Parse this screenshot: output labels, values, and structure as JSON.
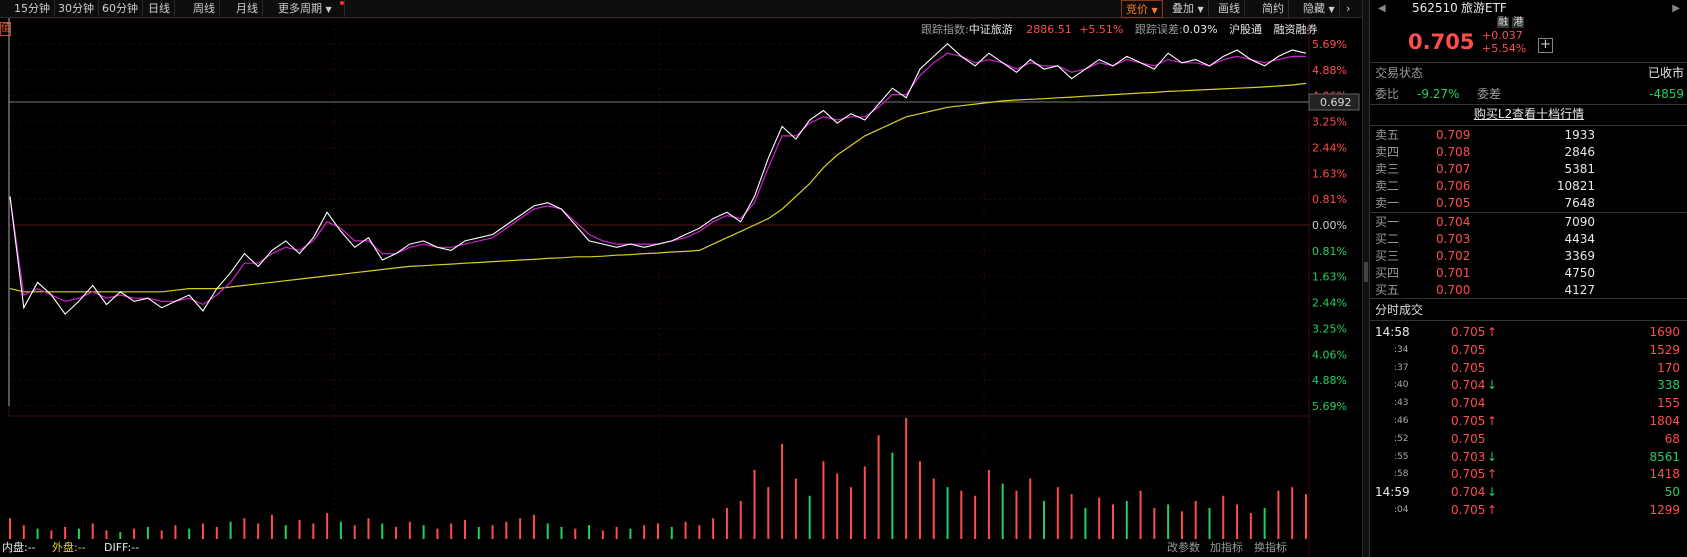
{
  "toolbar": {
    "items": [
      "15分钟",
      "30分钟",
      "60分钟",
      "日线",
      "周线",
      "月线",
      "更多周期"
    ],
    "right": [
      "竞价",
      "叠加",
      "画线",
      "简约",
      "隐藏"
    ]
  },
  "indicator": {
    "label": "跟踪指数:",
    "index_name": "中证旅游",
    "index_value": "2886.51",
    "index_change": "+5.51%",
    "err_label": "跟踪误差:",
    "err_value": "0.03%",
    "tags": [
      "沪股通",
      "融资融券"
    ]
  },
  "left_tag": "值",
  "pct_labels": [
    "5.69%",
    "4.88%",
    "4.06%",
    "3.25%",
    "2.44%",
    "1.63%",
    "0.81%",
    "0.00%",
    "0.81%",
    "1.63%",
    "2.44%",
    "3.25%",
    "4.06%",
    "4.88%",
    "5.69%"
  ],
  "cursor_price": "0.692",
  "bottom_bar": {
    "inner": "内盘:--",
    "outer": "外盘:--",
    "diff": "DIFF:--",
    "links": [
      "改参数",
      "加指标",
      "换指标"
    ]
  },
  "quote": {
    "code": "562510",
    "name": "旅游ETF",
    "badges": [
      "融",
      "港"
    ],
    "price": "0.705",
    "change": "+0.037",
    "change_pct": "+5.54%",
    "status_label": "交易状态",
    "status": "已收市",
    "ratio_label": "委比",
    "ratio": "-9.27%",
    "diff_label": "委差",
    "diff": "-4859",
    "l2": "购买L2查看十档行情"
  },
  "asks": [
    {
      "label": "卖五",
      "price": "0.709",
      "vol": "1933"
    },
    {
      "label": "卖四",
      "price": "0.708",
      "vol": "2846"
    },
    {
      "label": "卖三",
      "price": "0.707",
      "vol": "5381"
    },
    {
      "label": "卖二",
      "price": "0.706",
      "vol": "10821"
    },
    {
      "label": "卖一",
      "price": "0.705",
      "vol": "7648"
    }
  ],
  "bids": [
    {
      "label": "买一",
      "price": "0.704",
      "vol": "7090"
    },
    {
      "label": "买二",
      "price": "0.703",
      "vol": "4434"
    },
    {
      "label": "买三",
      "price": "0.702",
      "vol": "3369"
    },
    {
      "label": "买四",
      "price": "0.701",
      "vol": "4750"
    },
    {
      "label": "买五",
      "price": "0.700",
      "vol": "4127"
    }
  ],
  "ticks_title": "分时成交",
  "ticks": [
    {
      "time": "14:58",
      "price": "0.705",
      "dir": "↑",
      "vol": "1690"
    },
    {
      "time": ":34",
      "price": "0.705",
      "dir": "",
      "vol": "1529"
    },
    {
      "time": ":37",
      "price": "0.705",
      "dir": "",
      "vol": "170"
    },
    {
      "time": ":40",
      "price": "0.704",
      "dir": "↓",
      "vol": "338"
    },
    {
      "time": ":43",
      "price": "0.704",
      "dir": "",
      "vol": "155"
    },
    {
      "time": ":46",
      "price": "0.705",
      "dir": "↑",
      "vol": "1804"
    },
    {
      "time": ":52",
      "price": "0.705",
      "dir": "",
      "vol": "68"
    },
    {
      "time": ":55",
      "price": "0.703",
      "dir": "↓",
      "vol": "8561"
    },
    {
      "time": ":58",
      "price": "0.705",
      "dir": "↑",
      "vol": "1418"
    },
    {
      "time": "14:59",
      "price": "0.704",
      "dir": "↓",
      "vol": "50"
    },
    {
      "time": ":04",
      "price": "0.705",
      "dir": "↑",
      "vol": "1299"
    }
  ],
  "colors": {
    "up": "#ff4c4c",
    "down": "#20d060",
    "price_line": "#ffffff",
    "avg_line": "#d8d020",
    "ma_line": "#d020d0"
  },
  "chart_data": {
    "type": "line",
    "y_range_pct": [
      -5.69,
      5.69
    ],
    "prev_close": 0.668,
    "price_pct": [
      0.9,
      -2.6,
      -1.8,
      -2.2,
      -2.8,
      -2.4,
      -1.9,
      -2.5,
      -2.1,
      -2.4,
      -2.3,
      -2.6,
      -2.4,
      -2.2,
      -2.7,
      -2.0,
      -1.5,
      -0.9,
      -1.3,
      -0.8,
      -0.5,
      -0.9,
      -0.4,
      0.4,
      -0.2,
      -0.7,
      -0.4,
      -1.1,
      -0.9,
      -0.6,
      -0.5,
      -0.7,
      -0.8,
      -0.5,
      -0.4,
      -0.3,
      0.0,
      0.3,
      0.6,
      0.7,
      0.5,
      0.0,
      -0.5,
      -0.6,
      -0.7,
      -0.6,
      -0.7,
      -0.6,
      -0.5,
      -0.3,
      -0.1,
      0.2,
      0.4,
      0.1,
      0.9,
      2.1,
      3.1,
      2.7,
      3.3,
      3.6,
      3.2,
      3.5,
      3.3,
      3.8,
      4.3,
      4.0,
      4.9,
      5.3,
      5.7,
      5.3,
      5.0,
      5.4,
      5.1,
      4.8,
      5.2,
      4.9,
      5.0,
      4.6,
      4.9,
      5.2,
      5.0,
      5.3,
      5.1,
      4.9,
      5.4,
      5.1,
      5.2,
      5.0,
      5.3,
      5.5,
      5.2,
      5.0,
      5.3,
      5.5,
      5.4
    ],
    "ma_pct": [
      0.9,
      -2.2,
      -2.0,
      -2.2,
      -2.4,
      -2.3,
      -2.1,
      -2.3,
      -2.2,
      -2.3,
      -2.3,
      -2.4,
      -2.4,
      -2.3,
      -2.5,
      -2.2,
      -1.8,
      -1.2,
      -1.2,
      -0.9,
      -0.7,
      -0.8,
      -0.5,
      0.1,
      -0.1,
      -0.5,
      -0.5,
      -0.9,
      -0.9,
      -0.7,
      -0.6,
      -0.7,
      -0.7,
      -0.6,
      -0.5,
      -0.4,
      -0.1,
      0.2,
      0.5,
      0.6,
      0.5,
      0.1,
      -0.3,
      -0.5,
      -0.6,
      -0.6,
      -0.6,
      -0.6,
      -0.5,
      -0.4,
      -0.2,
      0.1,
      0.3,
      0.2,
      0.7,
      1.8,
      2.8,
      2.8,
      3.2,
      3.4,
      3.3,
      3.4,
      3.4,
      3.7,
      4.1,
      4.1,
      4.7,
      5.1,
      5.4,
      5.3,
      5.1,
      5.2,
      5.1,
      4.9,
      5.1,
      5.0,
      5.0,
      4.8,
      4.9,
      5.1,
      5.0,
      5.2,
      5.1,
      5.0,
      5.2,
      5.1,
      5.1,
      5.0,
      5.2,
      5.3,
      5.2,
      5.1,
      5.2,
      5.3,
      5.3
    ],
    "avg_pct": [
      -2.0,
      -2.1,
      -2.1,
      -2.1,
      -2.1,
      -2.1,
      -2.1,
      -2.1,
      -2.1,
      -2.1,
      -2.1,
      -2.1,
      -2.05,
      -2.0,
      -2.0,
      -2.0,
      -1.95,
      -1.9,
      -1.85,
      -1.8,
      -1.75,
      -1.7,
      -1.65,
      -1.6,
      -1.55,
      -1.5,
      -1.45,
      -1.4,
      -1.35,
      -1.3,
      -1.28,
      -1.25,
      -1.23,
      -1.2,
      -1.18,
      -1.15,
      -1.13,
      -1.1,
      -1.08,
      -1.05,
      -1.03,
      -1.0,
      -1.0,
      -0.98,
      -0.95,
      -0.93,
      -0.9,
      -0.88,
      -0.85,
      -0.83,
      -0.8,
      -0.6,
      -0.4,
      -0.2,
      0.0,
      0.2,
      0.5,
      0.9,
      1.3,
      1.8,
      2.2,
      2.5,
      2.8,
      3.0,
      3.2,
      3.4,
      3.5,
      3.6,
      3.7,
      3.75,
      3.8,
      3.85,
      3.9,
      3.93,
      3.95,
      3.97,
      4.0,
      4.02,
      4.05,
      4.07,
      4.1,
      4.12,
      4.15,
      4.17,
      4.2,
      4.22,
      4.24,
      4.26,
      4.28,
      4.3,
      4.32,
      4.34,
      4.37,
      4.4,
      4.45
    ],
    "volume": [
      12,
      8,
      6,
      5,
      7,
      6,
      9,
      5,
      4,
      6,
      7,
      5,
      8,
      6,
      9,
      7,
      10,
      12,
      9,
      14,
      8,
      11,
      9,
      15,
      10,
      8,
      12,
      9,
      7,
      10,
      8,
      6,
      9,
      11,
      7,
      8,
      10,
      12,
      14,
      9,
      7,
      6,
      8,
      5,
      7,
      6,
      8,
      9,
      7,
      10,
      8,
      12,
      18,
      22,
      40,
      30,
      55,
      35,
      25,
      45,
      38,
      30,
      42,
      60,
      50,
      70,
      45,
      35,
      30,
      28,
      25,
      40,
      32,
      28,
      35,
      22,
      30,
      26,
      18,
      24,
      20,
      22,
      28,
      18,
      20,
      16,
      22,
      18,
      25,
      20,
      15,
      18,
      28,
      30,
      26
    ],
    "volume_dir": [
      1,
      1,
      0,
      1,
      1,
      0,
      1,
      1,
      0,
      1,
      0,
      1,
      1,
      0,
      1,
      1,
      0,
      1,
      1,
      1,
      0,
      1,
      1,
      1,
      0,
      1,
      1,
      0,
      1,
      1,
      0,
      1,
      1,
      1,
      0,
      1,
      1,
      1,
      1,
      0,
      0,
      1,
      0,
      1,
      1,
      0,
      1,
      1,
      0,
      1,
      1,
      1,
      1,
      1,
      1,
      1,
      1,
      1,
      0,
      1,
      1,
      1,
      1,
      1,
      0,
      1,
      1,
      1,
      0,
      1,
      1,
      1,
      0,
      1,
      1,
      0,
      1,
      1,
      0,
      1,
      1,
      0,
      1,
      1,
      0,
      1,
      1,
      0,
      1,
      1,
      1,
      0,
      1,
      1,
      1
    ]
  }
}
